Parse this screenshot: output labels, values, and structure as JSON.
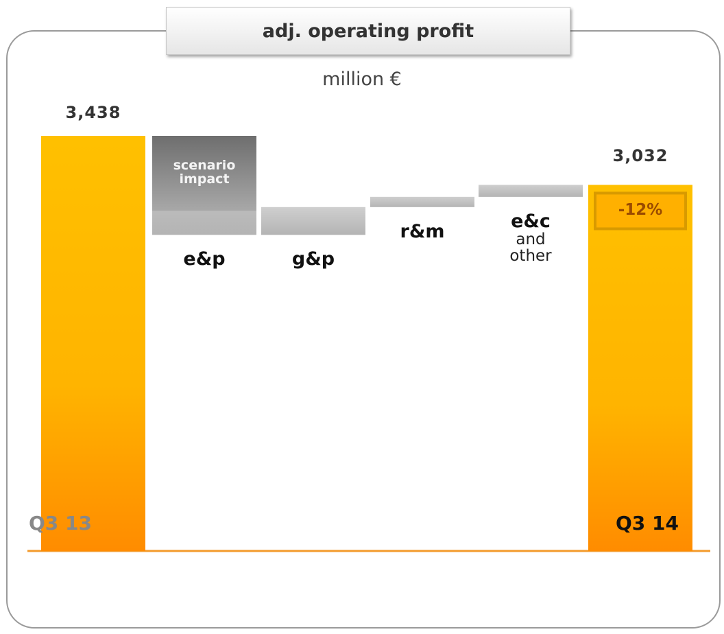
{
  "chart_data": {
    "type": "waterfall",
    "title": "adj. operating profit",
    "subtitle": "million €",
    "start": {
      "label": "Q3 13",
      "value": 3438,
      "value_label": "3,438"
    },
    "steps": [
      {
        "label": "e&p",
        "value": -820,
        "scenario": {
          "label": "scenario impact",
          "value": -620
        }
      },
      {
        "label": "g&p",
        "value": 230
      },
      {
        "label": "r&m",
        "value": 85
      },
      {
        "label": "e&c",
        "sublabel": "and other",
        "value": 99
      }
    ],
    "end": {
      "label": "Q3 14",
      "value": 3032,
      "value_label": "3,032"
    },
    "change_label": "-12%"
  }
}
